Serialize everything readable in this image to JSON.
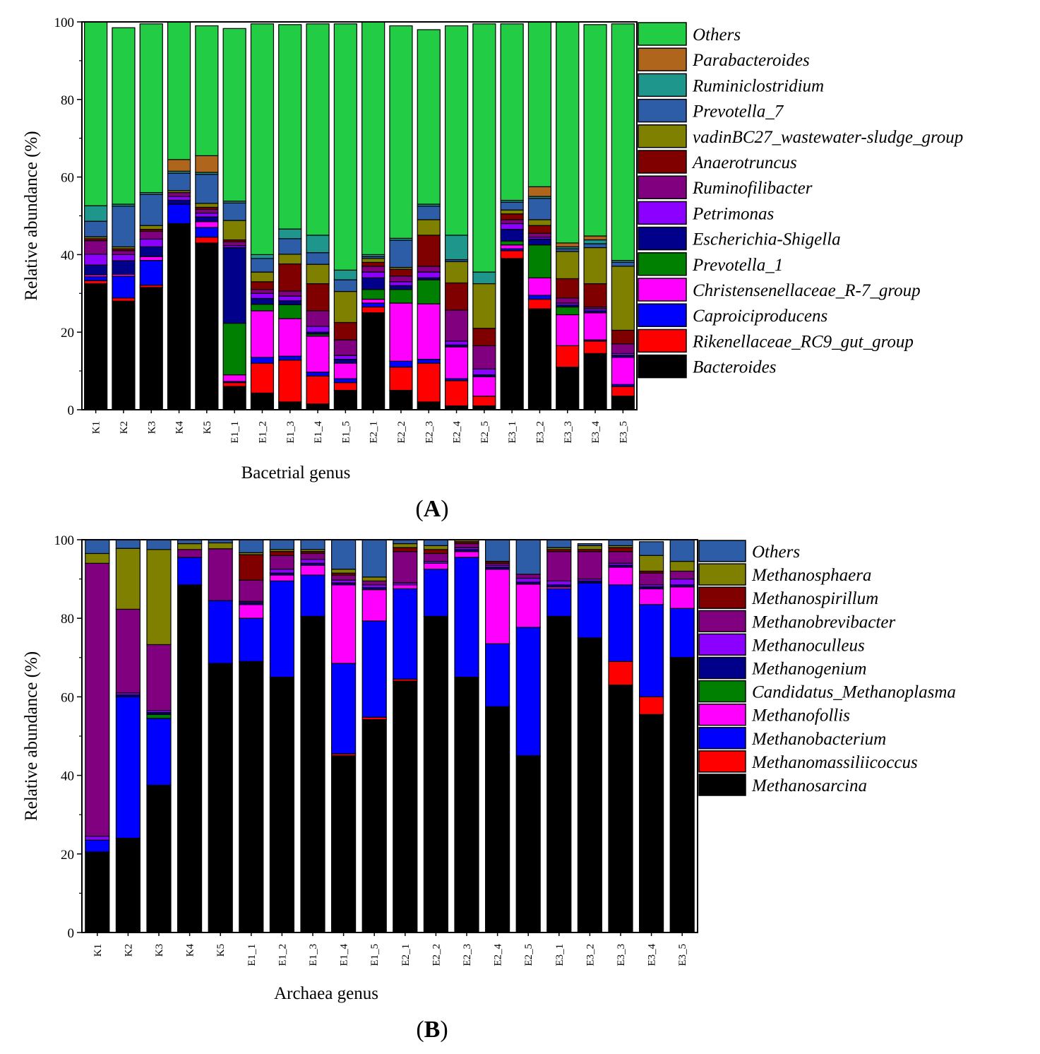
{
  "figure": {
    "panels": [
      {
        "label_open": "(",
        "label_letter": "A",
        "label_close": ")"
      },
      {
        "label_open": "(",
        "label_letter": "B",
        "label_close": ")"
      }
    ]
  },
  "chart_data": [
    {
      "type": "bar",
      "stacked": true,
      "panel": "A",
      "title": "",
      "xlabel": "Bacetrial genus",
      "ylabel": "Relative abundance (%)",
      "ylim": [
        0,
        100
      ],
      "yticks": [
        0,
        20,
        40,
        60,
        80,
        100
      ],
      "legend_position": "right",
      "categories": [
        "K1",
        "K2",
        "K3",
        "K4",
        "K5",
        "E1_1",
        "E1_2",
        "E1_3",
        "E1_4",
        "E1_5",
        "E2_1",
        "E2_2",
        "E2_3",
        "E2_4",
        "E2_5",
        "E3_1",
        "E3_2",
        "E3_3",
        "E3_4",
        "E3_5"
      ],
      "series": [
        {
          "name": "Bacteroides",
          "color": "#000000",
          "values": [
            32.5,
            28,
            31.5,
            48,
            43,
            6,
            4.3,
            2,
            1.5,
            5,
            25,
            5,
            2,
            1,
            1,
            39,
            26,
            11,
            14.5,
            3.5
          ]
        },
        {
          "name": "Rikenellaceae_RC9_gut_group",
          "color": "#FF0000",
          "values": [
            0.8,
            0.8,
            0.6,
            0,
            1.5,
            1,
            7.7,
            10.8,
            7.2,
            2,
            1.5,
            6,
            10,
            6.5,
            2.5,
            2,
            2.5,
            5.5,
            3.2,
            2.5
          ]
        },
        {
          "name": "Caproiciproducens",
          "color": "#0000FF",
          "values": [
            1,
            5.6,
            6.4,
            5,
            2.5,
            0.3,
            1.5,
            1,
            1,
            1,
            1,
            1.5,
            1,
            0.5,
            0,
            0.5,
            1,
            0,
            0.3,
            0.5
          ]
        },
        {
          "name": "Christensenellaceae_R-7_group",
          "color": "#FF00FF",
          "values": [
            0.5,
            0.5,
            1,
            0,
            1.5,
            1.7,
            12,
            9.7,
            9.3,
            4,
            1,
            15,
            14.3,
            8.2,
            5,
            1,
            4.5,
            8,
            7,
            7
          ]
        },
        {
          "name": "Prevotella_1",
          "color": "#008000",
          "values": [
            0,
            0,
            0,
            0,
            0,
            13.3,
            1.7,
            3.6,
            0.5,
            0,
            2.5,
            3.5,
            6.2,
            0,
            0,
            1,
            8.5,
            2,
            0,
            0
          ]
        },
        {
          "name": "Escherichia-Shigella",
          "color": "#00008B",
          "values": [
            2.5,
            3.5,
            2.5,
            1,
            1.2,
            19.5,
            1.5,
            1,
            0.5,
            1,
            3,
            1,
            0.5,
            0.5,
            0.5,
            3,
            1.5,
            0.5,
            0.5,
            0.5
          ]
        },
        {
          "name": "Petrimonas",
          "color": "#8B00FF",
          "values": [
            2.8,
            1.6,
            2,
            1,
            1,
            0.5,
            1.3,
            1.2,
            1.5,
            1,
            1.5,
            1,
            1.5,
            1,
            1.5,
            1.5,
            0.5,
            0.5,
            0.5,
            0.5
          ]
        },
        {
          "name": "Ruminofilibacter",
          "color": "#800080",
          "values": [
            3.5,
            1,
            2,
            1,
            1,
            1,
            1,
            1.3,
            4,
            4,
            1.5,
            1.5,
            1.5,
            8,
            6,
            1,
            1,
            1.3,
            0.5,
            2.5
          ]
        },
        {
          "name": "Anaerotruncus",
          "color": "#800000",
          "values": [
            0.5,
            0.5,
            0.5,
            0,
            0.5,
            0.5,
            2,
            7,
            7,
            4.5,
            1,
            1.7,
            8,
            7,
            4.5,
            1.5,
            2,
            5,
            6,
            3.5
          ]
        },
        {
          "name": "vadinBC27_wastewater-sludge_group",
          "color": "#808000",
          "values": [
            0.5,
            0.5,
            1,
            0.5,
            1,
            5,
            2.5,
            2.5,
            5,
            8,
            1,
            0.5,
            4,
            5.5,
            11.5,
            1,
            1.5,
            7,
            9.3,
            16.5
          ]
        },
        {
          "name": "Prevotella_7",
          "color": "#2E5DA8",
          "values": [
            4,
            10.5,
            8,
            4.5,
            7.5,
            4.5,
            3.5,
            4,
            3,
            3,
            0.5,
            7,
            3.5,
            0.5,
            0,
            2,
            5.5,
            0.7,
            1,
            1
          ]
        },
        {
          "name": "Ruminiclostridium",
          "color": "#1F968B",
          "values": [
            4,
            0.5,
            0.5,
            0.5,
            0.5,
            0.5,
            1,
            2.5,
            4.5,
            2.5,
            0.5,
            0.5,
            0.5,
            6.3,
            3,
            0.5,
            0.5,
            0.5,
            1,
            0.5
          ]
        },
        {
          "name": "Parabacteroides",
          "color": "#B0651C",
          "values": [
            0,
            0,
            0,
            3,
            4.3,
            0,
            0,
            0,
            0,
            0,
            0,
            0,
            0,
            0,
            0,
            0,
            2.5,
            1,
            1,
            0
          ]
        },
        {
          "name": "Others",
          "color": "#22CC44",
          "values": [
            47.4,
            45.5,
            43.5,
            35.5,
            33.5,
            44.5,
            59.5,
            52.7,
            54.5,
            63.5,
            62.5,
            54.8,
            45,
            54,
            64,
            45.5,
            42.5,
            57,
            54.5,
            61
          ]
        }
      ]
    },
    {
      "type": "bar",
      "stacked": true,
      "panel": "B",
      "title": "",
      "xlabel": "Archaea genus",
      "ylabel": "Relative abundance (%)",
      "ylim": [
        0,
        100
      ],
      "yticks": [
        0,
        20,
        40,
        60,
        80,
        100
      ],
      "legend_position": "right",
      "categories": [
        "K1",
        "K2",
        "K3",
        "K4",
        "K5",
        "E1_1",
        "E1_2",
        "E1_3",
        "E1_4",
        "E1_5",
        "E2_1",
        "E2_2",
        "E2_3",
        "E2_4",
        "E2_5",
        "E3_1",
        "E3_2",
        "E3_3",
        "E3_4",
        "E3_5"
      ],
      "series": [
        {
          "name": "Methanosarcina",
          "color": "#000000",
          "values": [
            20.5,
            24,
            37.5,
            88.5,
            68.5,
            69,
            65,
            80.5,
            45,
            54.2,
            64,
            80.5,
            65,
            57.5,
            45,
            80.5,
            75,
            63,
            55.5,
            70
          ]
        },
        {
          "name": "Methanomassiliicoccus",
          "color": "#FF0000",
          "values": [
            0,
            0,
            0,
            0,
            0,
            0,
            0,
            0,
            0.5,
            0.6,
            0.5,
            0,
            0,
            0,
            0,
            0,
            0,
            6,
            4.5,
            0
          ]
        },
        {
          "name": "Methanobacterium",
          "color": "#0000FF",
          "values": [
            3,
            36,
            17,
            7,
            16,
            11,
            24.5,
            10.5,
            23,
            24.5,
            23,
            12,
            30.5,
            16,
            32.7,
            7,
            14,
            19.5,
            23.5,
            12.5
          ]
        },
        {
          "name": "Methanofollis",
          "color": "#FF00FF",
          "values": [
            0,
            0,
            0,
            0,
            0,
            3.5,
            1.5,
            2.5,
            20,
            8,
            1,
            1.5,
            1.5,
            19,
            11,
            0.5,
            0,
            4.5,
            4,
            5.5
          ]
        },
        {
          "name": "Candidatus_Methanoplasma",
          "color": "#008000",
          "values": [
            0,
            0,
            1,
            0,
            0,
            0,
            0,
            0,
            0,
            0,
            0,
            0,
            0,
            0,
            0,
            0,
            0,
            0,
            0,
            0
          ]
        },
        {
          "name": "Methanogenium",
          "color": "#00008B",
          "values": [
            0,
            0.5,
            0.5,
            0,
            0,
            0.5,
            0.5,
            0.5,
            0.5,
            0.5,
            0,
            0,
            0.5,
            0.5,
            0.5,
            0.5,
            0.5,
            0.5,
            0.5,
            0.5
          ]
        },
        {
          "name": "Methanoculleus",
          "color": "#8B00FF",
          "values": [
            1,
            0.5,
            0.5,
            0,
            0,
            0.3,
            1,
            1,
            0.7,
            0.7,
            0.5,
            0.5,
            0.5,
            0.5,
            1,
            1,
            0.5,
            0.5,
            0.5,
            1.5
          ]
        },
        {
          "name": "Methanobrevibacter",
          "color": "#800080",
          "values": [
            69.5,
            21.3,
            16.8,
            2,
            13.2,
            5.4,
            3.5,
            1.5,
            1.3,
            1,
            8,
            2,
            1,
            0.5,
            1,
            7.5,
            7,
            3,
            3,
            2
          ]
        },
        {
          "name": "Methanospirillum",
          "color": "#800000",
          "values": [
            0,
            0,
            0,
            0,
            0,
            6.5,
            1,
            0.5,
            0.5,
            0,
            1,
            1,
            0.5,
            0.5,
            0,
            0.5,
            0.5,
            1,
            0.5,
            0
          ]
        },
        {
          "name": "Methanosphaera",
          "color": "#808000",
          "values": [
            2.5,
            15.5,
            24.2,
            1.5,
            1.5,
            0.5,
            0.5,
            0.5,
            1,
            1,
            1,
            1,
            0.5,
            0,
            0,
            0.5,
            1,
            0.5,
            4,
            2.5
          ]
        },
        {
          "name": "Others",
          "color": "#2E5DA8",
          "values": [
            3.5,
            2.2,
            2.5,
            1,
            0.8,
            3.3,
            2.5,
            2.5,
            7.5,
            9.5,
            1,
            1.5,
            0,
            5.5,
            8.8,
            2,
            0.5,
            1.5,
            3.5,
            5.5
          ]
        }
      ]
    }
  ]
}
